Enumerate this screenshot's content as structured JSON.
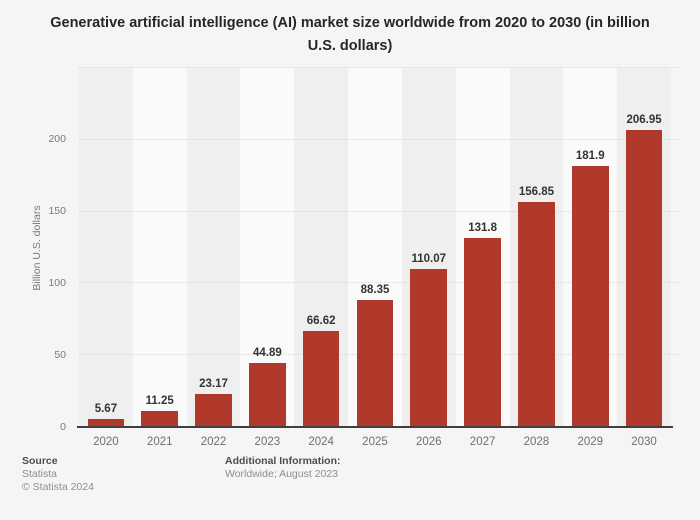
{
  "title": "Generative artificial intelligence (AI) market size worldwide from 2020 to 2030 (in billion U.S. dollars)",
  "chart_data": {
    "type": "bar",
    "title": "Generative artificial intelligence (AI) market size worldwide from 2020 to 2030 (in billion U.S. dollars)",
    "categories": [
      "2020",
      "2021",
      "2022",
      "2023",
      "2024",
      "2025",
      "2026",
      "2027",
      "2028",
      "2029",
      "2030"
    ],
    "values": [
      5.67,
      11.25,
      23.17,
      44.89,
      66.62,
      88.35,
      110.07,
      131.8,
      156.85,
      181.9,
      206.95
    ],
    "value_labels": [
      "5.67",
      "11.25",
      "23.17",
      "44.89",
      "66.62",
      "88.35",
      "110.07",
      "131.8",
      "156.85",
      "181.9",
      "206.95"
    ],
    "xlabel": "",
    "ylabel": "Billion U.S. dollars",
    "ylim": [
      0,
      250
    ],
    "yticks": [
      0,
      50,
      100,
      150,
      200
    ],
    "gridline_values": [
      50,
      100,
      150,
      200,
      250
    ],
    "grid": "horizontal dotted",
    "legend": "none",
    "bar_color": "#b0392c",
    "band_colors": [
      "#efefef",
      "#fafafa"
    ]
  },
  "footer": {
    "source_label": "Source",
    "source_name": "Statista",
    "copyright": "© Statista 2024",
    "additional_info_label": "Additional Information:",
    "additional_info_value": "Worldwide; August 2023"
  }
}
